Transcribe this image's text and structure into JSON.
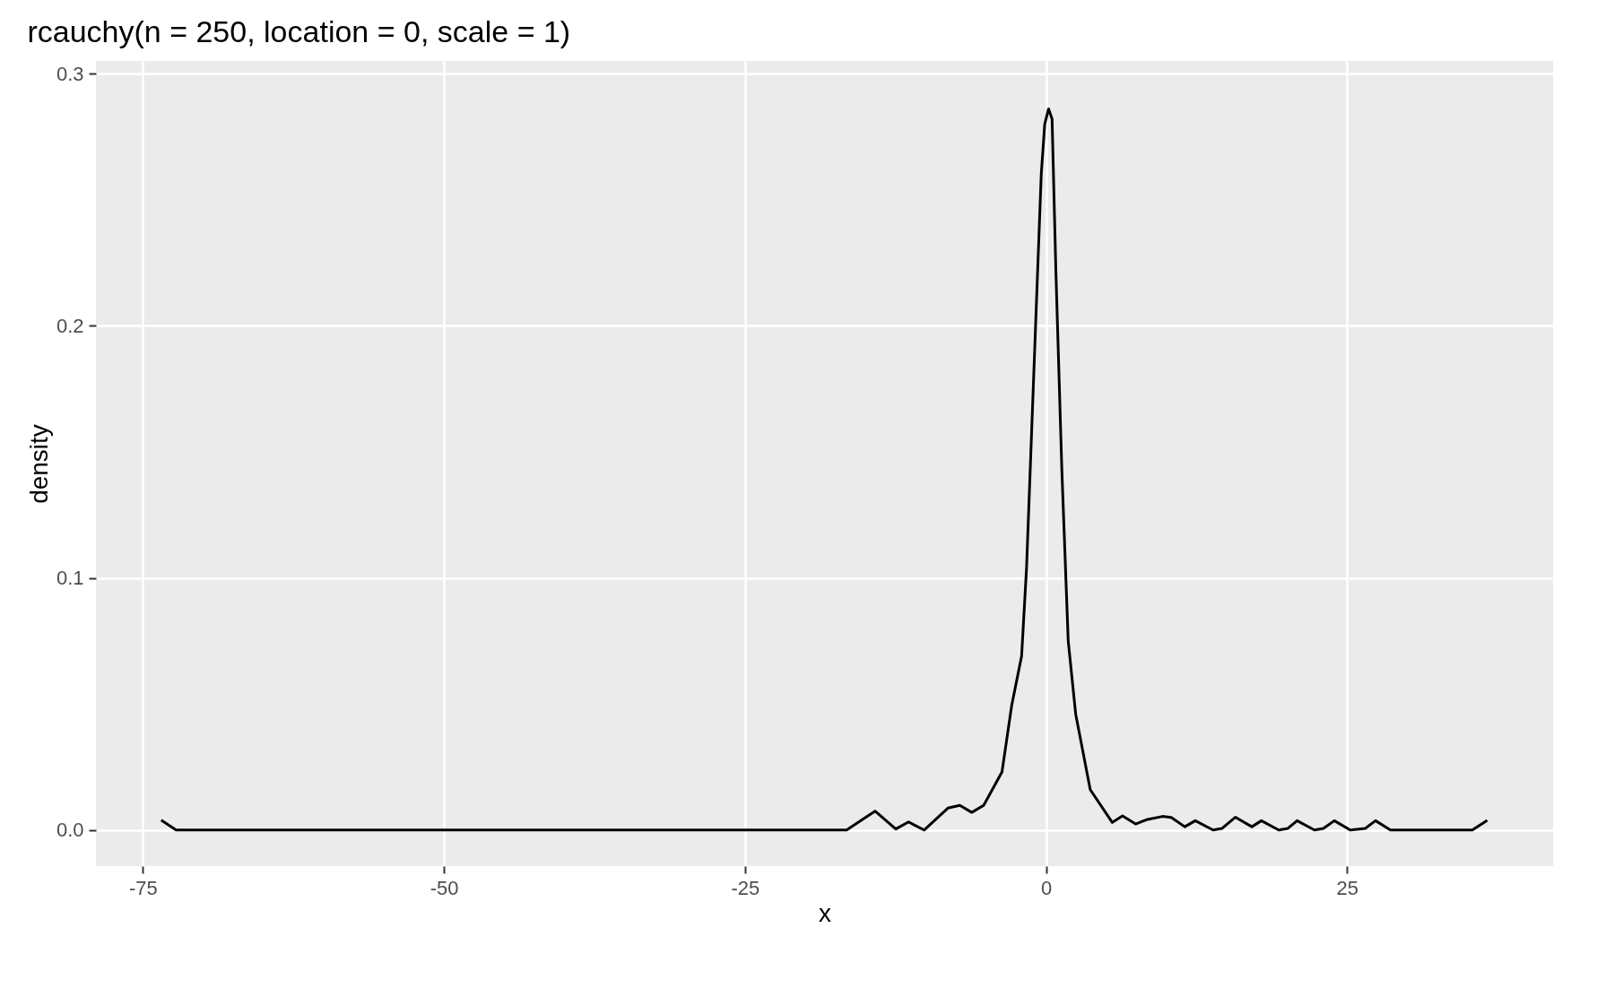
{
  "chart_data": {
    "type": "line",
    "title": "rcauchy(n = 250, location = 0, scale = 1)",
    "xlabel": "x",
    "ylabel": "density",
    "x": [
      -73.48,
      -72.24,
      -16.56,
      -15.33,
      -14.2,
      -12.48,
      -11.42,
      -10.13,
      -8.15,
      -7.16,
      -6.17,
      -5.18,
      -3.66,
      -2.85,
      -2.03,
      -1.62,
      -1.01,
      -0.4,
      -0.11,
      0.21,
      0.5,
      0.82,
      1.31,
      1.84,
      2.46,
      3.67,
      5.5,
      6.35,
      7.44,
      8.43,
      9.67,
      10.4,
      11.52,
      12.39,
      13.87,
      14.6,
      15.73,
      17.09,
      17.88,
      19.32,
      20.06,
      20.85,
      22.29,
      23.03,
      23.94,
      25.26,
      26.5,
      27.36,
      28.6,
      35.4,
      36.64
    ],
    "series": [
      {
        "color": "#000000",
        "values": [
          0.0039,
          0,
          0,
          0.0039,
          0.0075,
          0.0004,
          0.0032,
          0,
          0.0087,
          0.0098,
          0.007,
          0.0098,
          0.023,
          0.0495,
          0.069,
          0.104,
          0.182,
          0.26,
          0.28,
          0.286,
          0.282,
          0.221,
          0.143,
          0.075,
          0.046,
          0.016,
          0.003,
          0.0056,
          0.0024,
          0.0042,
          0.0054,
          0.005,
          0.0013,
          0.0037,
          0,
          0.0006,
          0.0051,
          0.0013,
          0.0037,
          0,
          0.0006,
          0.0037,
          0,
          0.0006,
          0.0037,
          0,
          0.0006,
          0.0037,
          0,
          0,
          0.0038
        ]
      }
    ],
    "xlim": [
      -78.9,
      42.1
    ],
    "ylim": [
      -0.0143,
      0.305
    ],
    "xticks": [
      -75,
      -50,
      -25,
      0,
      25
    ],
    "yticks": [
      {
        "value": 0,
        "label": "0.0"
      },
      {
        "value": 0.1,
        "label": "0.1"
      },
      {
        "value": 0.2,
        "label": "0.2"
      },
      {
        "value": 0.3,
        "label": "0.3"
      }
    ],
    "grid": true,
    "line_style": "solid"
  }
}
